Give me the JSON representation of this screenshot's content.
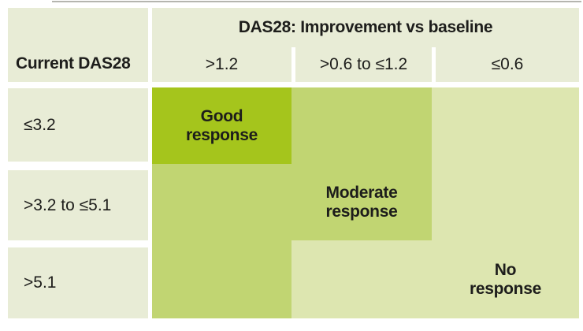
{
  "colors": {
    "page_bg": "#ffffff",
    "header_bg": "#e8ecd6",
    "separator": "#ffffff",
    "good": "#a5c51c",
    "moderate": "#c1d572",
    "no_response": "#dde6b0",
    "text": "#1d1d1b"
  },
  "header": {
    "row_axis_label": "Current DAS28",
    "improvement_title": "DAS28: Improvement vs baseline",
    "columns": [
      ">1.2",
      ">0.6 to ≤1.2",
      "≤0.6"
    ]
  },
  "row_labels": [
    "≤3.2",
    ">3.2 to ≤5.1",
    ">5.1"
  ],
  "matrix": {
    "zones": [
      [
        "good",
        "moderate",
        "no_response"
      ],
      [
        "moderate",
        "moderate",
        "no_response"
      ],
      [
        "moderate",
        "no_response",
        "no_response"
      ]
    ],
    "labels": [
      {
        "row": 0,
        "col": 0,
        "lines": [
          "Good",
          "response"
        ]
      },
      {
        "row": 1,
        "col": 1,
        "lines": [
          "Moderate",
          "response"
        ]
      },
      {
        "row": 2,
        "col": 2,
        "lines": [
          "No",
          "response"
        ]
      }
    ]
  },
  "chart_data": {
    "type": "heatmap",
    "title": "DAS28: Improvement vs baseline",
    "x_axis_label": "DAS28: Improvement vs baseline",
    "x_categories": [
      ">1.2",
      ">0.6 to ≤1.2",
      "≤0.6"
    ],
    "y_axis_label": "Current DAS28",
    "y_categories": [
      "≤3.2",
      ">3.2 to ≤5.1",
      ">5.1"
    ],
    "cell_values": [
      [
        "Good response",
        "Moderate response",
        "No response"
      ],
      [
        "Moderate response",
        "Moderate response",
        "No response"
      ],
      [
        "Moderate response",
        "No response",
        "No response"
      ]
    ],
    "zone_colors": {
      "Good response": "#a5c51c",
      "Moderate response": "#c1d572",
      "No response": "#dde6b0"
    }
  }
}
